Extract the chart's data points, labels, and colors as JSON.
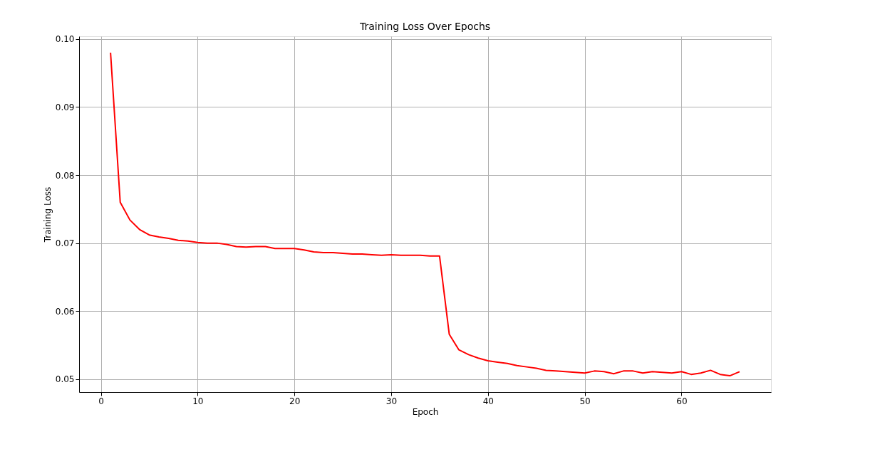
{
  "chart_data": {
    "type": "line",
    "title": "Training Loss Over Epochs",
    "xlabel": "Epoch",
    "ylabel": "Training Loss",
    "x": [
      1,
      2,
      3,
      4,
      5,
      6,
      7,
      8,
      9,
      10,
      11,
      12,
      13,
      14,
      15,
      16,
      17,
      18,
      19,
      20,
      21,
      22,
      23,
      24,
      25,
      26,
      27,
      28,
      29,
      30,
      31,
      32,
      33,
      34,
      35,
      36,
      37,
      38,
      39,
      40,
      41,
      42,
      43,
      44,
      45,
      46,
      47,
      48,
      49,
      50,
      51,
      52,
      53,
      54,
      55,
      56,
      57,
      58,
      59,
      60,
      61,
      62,
      63,
      64,
      65,
      66
    ],
    "series": [
      {
        "color": "#ff0000",
        "values": [
          0.098,
          0.076,
          0.0734,
          0.072,
          0.0712,
          0.0709,
          0.0707,
          0.0704,
          0.0703,
          0.0701,
          0.07,
          0.07,
          0.0698,
          0.0695,
          0.0694,
          0.0695,
          0.0695,
          0.0692,
          0.0692,
          0.0692,
          0.069,
          0.0687,
          0.0686,
          0.0686,
          0.0685,
          0.0684,
          0.0684,
          0.0683,
          0.0682,
          0.0683,
          0.0682,
          0.0682,
          0.0682,
          0.0681,
          0.0681,
          0.0566,
          0.0543,
          0.0536,
          0.0531,
          0.0527,
          0.0525,
          0.0523,
          0.052,
          0.0518,
          0.0516,
          0.0513,
          0.0512,
          0.0511,
          0.051,
          0.0509,
          0.0512,
          0.0511,
          0.0508,
          0.0512,
          0.0512,
          0.0509,
          0.0511,
          0.051,
          0.0509,
          0.0511,
          0.0507,
          0.0509,
          0.0513,
          0.0507,
          0.0505,
          0.0511
        ]
      }
    ],
    "xlim": [
      -2.25,
      69.25
    ],
    "ylim": [
      0.0481,
      0.1004
    ],
    "xticks": [
      0,
      10,
      20,
      30,
      40,
      50,
      60
    ],
    "yticks": [
      {
        "value": 0.05,
        "label": "0.05"
      },
      {
        "value": 0.06,
        "label": "0.06"
      },
      {
        "value": 0.07,
        "label": "0.07"
      },
      {
        "value": 0.08,
        "label": "0.08"
      },
      {
        "value": 0.09,
        "label": "0.09"
      },
      {
        "value": 0.1,
        "label": "0.10"
      }
    ],
    "grid": true,
    "line_style": "solid",
    "marker": "none"
  }
}
